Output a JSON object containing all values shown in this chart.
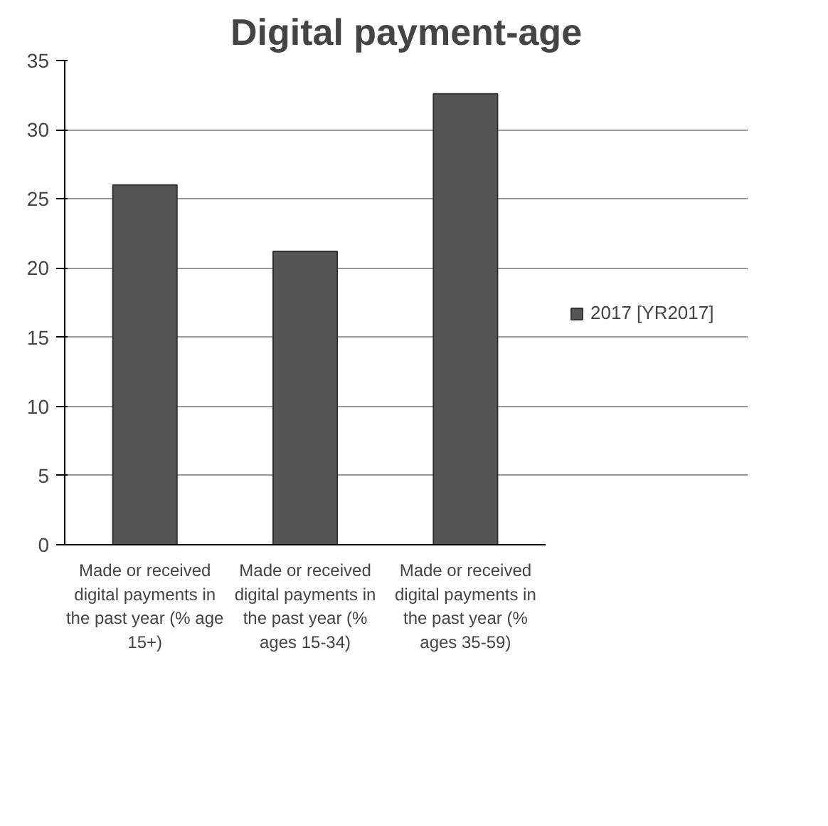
{
  "chart_data": {
    "type": "bar",
    "title": "Digital payment-age",
    "categories": [
      "Made or received digital payments in the past year (% age 15+)",
      "Made or received digital payments in the past year (% ages 15-34)",
      "Made or received digital payments in the past year (% ages 35-59)"
    ],
    "series": [
      {
        "name": "2017 [YR2017]",
        "color": "#555555",
        "values": [
          26.0,
          21.2,
          32.6
        ]
      }
    ],
    "ylim": [
      0,
      35
    ],
    "yticks": [
      0,
      5,
      10,
      15,
      20,
      25,
      30,
      35
    ],
    "grid": "y",
    "legend": "right"
  }
}
